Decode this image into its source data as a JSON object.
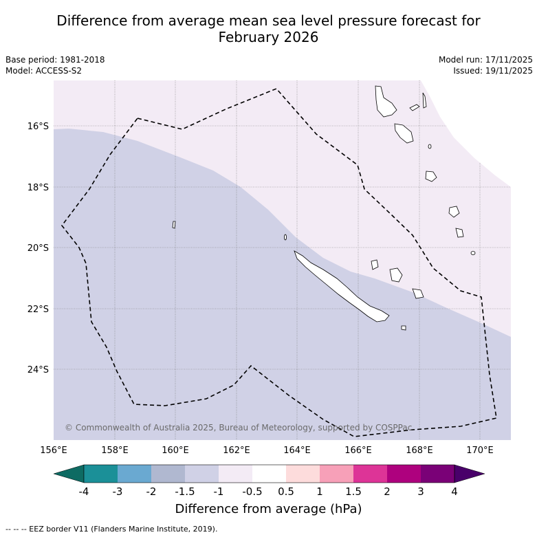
{
  "title_line1": "Difference from average mean sea level pressure forecast for",
  "title_line2": "February 2026",
  "meta": {
    "base_period": "Base period: 1981-2018",
    "model": "Model: ACCESS-S2",
    "model_run": "Model run: 17/11/2025",
    "issued": "Issued: 19/11/2025"
  },
  "map": {
    "lon_ticks": [
      "156°E",
      "158°E",
      "160°E",
      "162°E",
      "164°E",
      "166°E",
      "168°E",
      "170°E"
    ],
    "lat_ticks": [
      "16°S",
      "18°S",
      "20°S",
      "22°S",
      "24°S"
    ],
    "copyright": "© Commonwealth of Australia 2025, Bureau of Meteorology, supported by COSPPac",
    "colors": {
      "light_blue_region": "#d0d1e6",
      "light_pink_region": "#f3ebf5"
    }
  },
  "colorbar": {
    "tick_labels": [
      "-4",
      "-3",
      "-2",
      "-1.5",
      "-1",
      "-0.5",
      "0.5",
      "1",
      "1.5",
      "2",
      "3",
      "4"
    ],
    "colors": [
      "#0e6b63",
      "#1b9098",
      "#6aa9d1",
      "#b0b8d0",
      "#d0d1e6",
      "#f3ebf5",
      "#ffffff",
      "#fddcdc",
      "#f7a0b8",
      "#dd3497",
      "#ae017e",
      "#7a0177",
      "#49006a"
    ],
    "label": "Difference from average (hPa)"
  },
  "footer": "--  --  -- EEZ border V11 (Flanders Marine Institute, 2019)."
}
